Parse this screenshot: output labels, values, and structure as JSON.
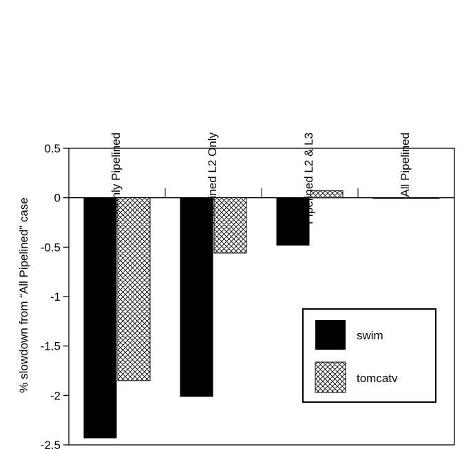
{
  "chart_data": {
    "type": "bar",
    "categories": [
      "Roughly Pipelined",
      "Pipelined L2 Only",
      "Pipelined L2 & L3",
      "All Pipelined"
    ],
    "series": [
      {
        "name": "swim",
        "values": [
          -2.43,
          -2.01,
          -0.48,
          0.0
        ],
        "color": "#000000",
        "pattern": "solid"
      },
      {
        "name": "tomcatv",
        "values": [
          -1.85,
          -0.56,
          0.07,
          0.0
        ],
        "color": "#ffffff",
        "pattern": "crosshatch"
      }
    ],
    "xlabel": "",
    "ylabel": "% slowdown from “All Pipelined” case",
    "ylim": [
      -2.5,
      0.5
    ],
    "yticks": [
      "0.5",
      "0",
      "-0.5",
      "-1",
      "-1.5",
      "-2",
      "-2.5"
    ],
    "ytick_values": [
      0.5,
      0,
      -0.5,
      -1,
      -1.5,
      -2,
      -2.5
    ],
    "category_label_placement": "top, rotated vertical",
    "grid": false,
    "legend_position": "lower-right inside plot"
  }
}
